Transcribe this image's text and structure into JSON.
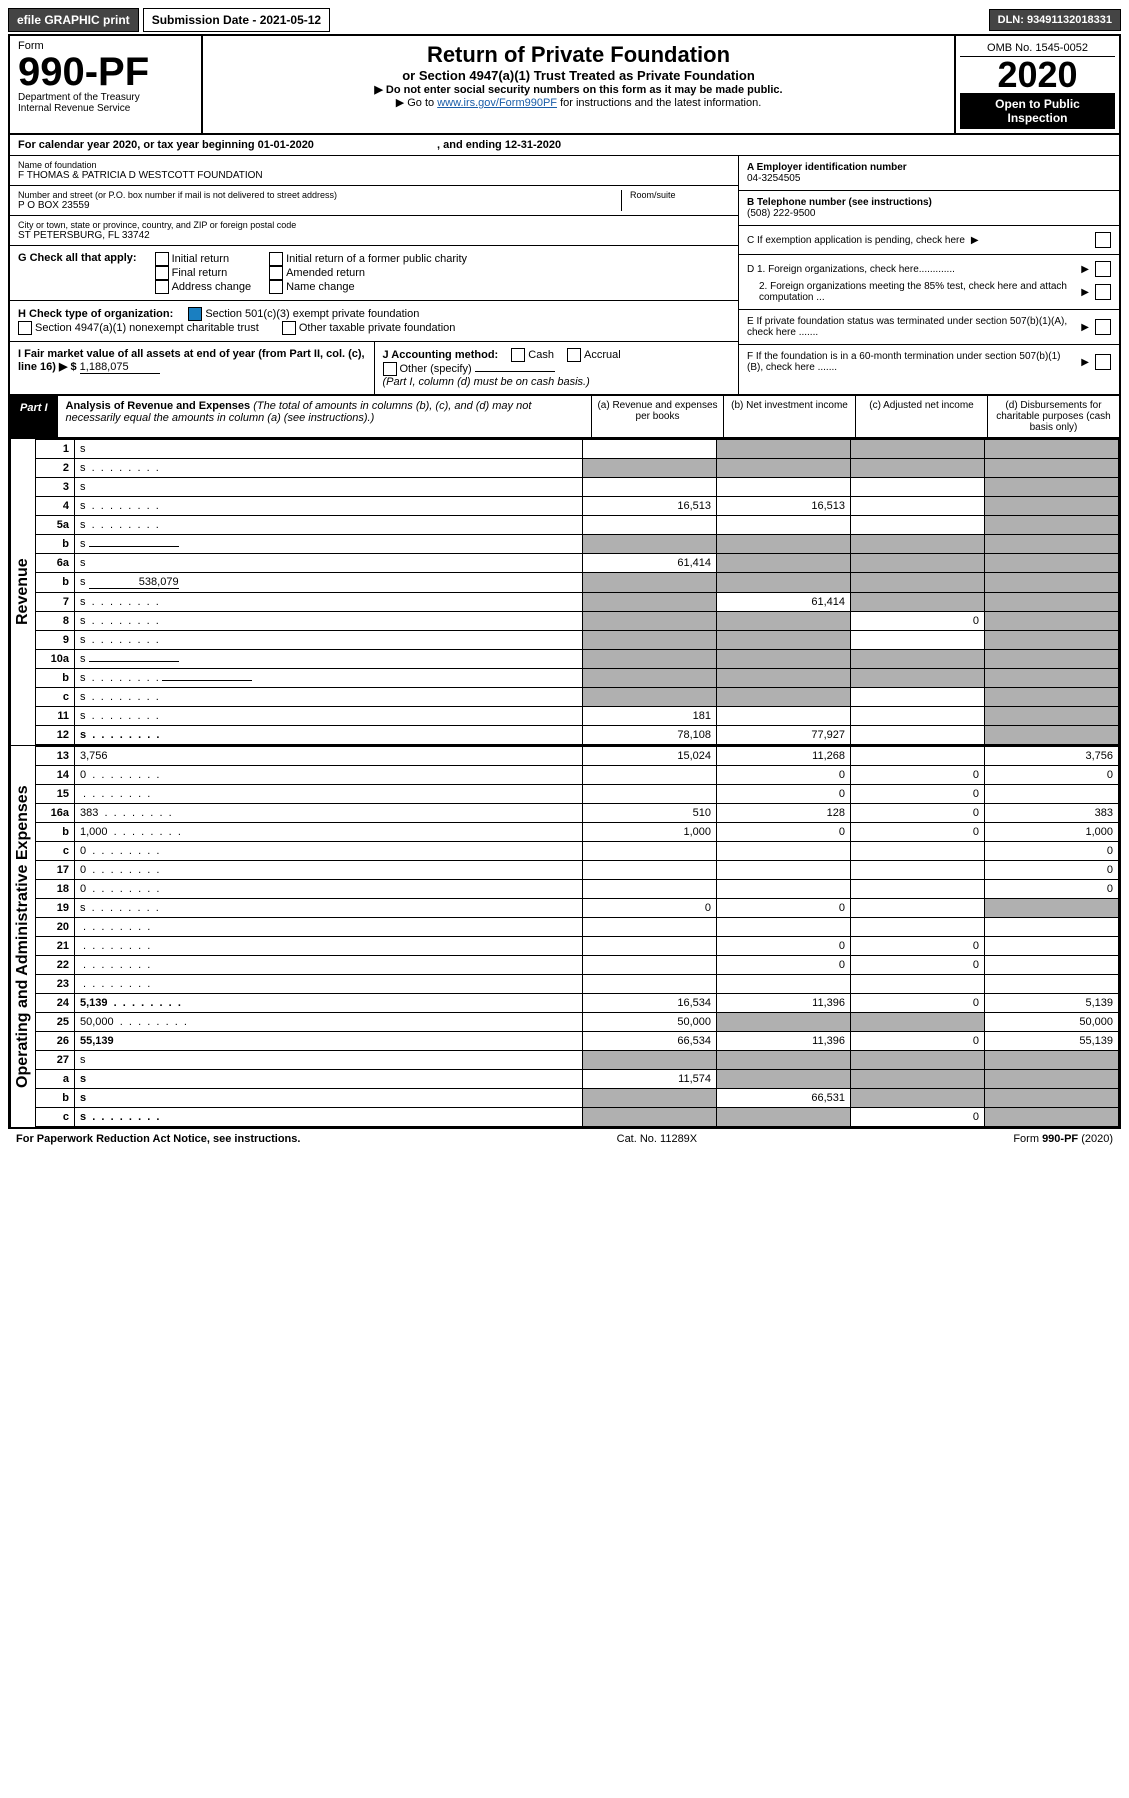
{
  "topbar": {
    "efile": "efile GRAPHIC print",
    "submission_label": "Submission Date - 2021-05-12",
    "dln": "DLN: 93491132018331"
  },
  "header": {
    "form_label": "Form",
    "form_number": "990-PF",
    "dept": "Department of the Treasury\nInternal Revenue Service",
    "title": "Return of Private Foundation",
    "subtitle": "or Section 4947(a)(1) Trust Treated as Private Foundation",
    "note1": "▶ Do not enter social security numbers on this form as it may be made public.",
    "note2_pre": "▶ Go to ",
    "note2_link": "www.irs.gov/Form990PF",
    "note2_post": " for instructions and the latest information.",
    "omb": "OMB No. 1545-0052",
    "year": "2020",
    "open": "Open to Public Inspection"
  },
  "calendar": {
    "text_pre": "For calendar year 2020, or tax year beginning ",
    "begin": "01-01-2020",
    "mid": ", and ending ",
    "end": "12-31-2020"
  },
  "entity": {
    "name_label": "Name of foundation",
    "name": "F THOMAS & PATRICIA D WESTCOTT FOUNDATION",
    "addr_label": "Number and street (or P.O. box number if mail is not delivered to street address)",
    "addr": "P O BOX 23559",
    "room_label": "Room/suite",
    "city_label": "City or town, state or province, country, and ZIP or foreign postal code",
    "city": "ST PETERSBURG, FL  33742",
    "a_label": "A Employer identification number",
    "a_val": "04-3254505",
    "b_label": "B Telephone number (see instructions)",
    "b_val": "(508) 222-9500",
    "c_label": "C If exemption application is pending, check here",
    "d1": "D 1. Foreign organizations, check here.............",
    "d2": "2. Foreign organizations meeting the 85% test, check here and attach computation ...",
    "e": "E If private foundation status was terminated under section 507(b)(1)(A), check here .......",
    "f": "F If the foundation is in a 60-month termination under section 507(b)(1)(B), check here ......."
  },
  "g": {
    "label": "G Check all that apply:",
    "opts": [
      "Initial return",
      "Final return",
      "Address change",
      "Initial return of a former public charity",
      "Amended return",
      "Name change"
    ]
  },
  "h": {
    "label": "H Check type of organization:",
    "opt1": "Section 501(c)(3) exempt private foundation",
    "opt2": "Section 4947(a)(1) nonexempt charitable trust",
    "opt3": "Other taxable private foundation"
  },
  "i": {
    "label": "I Fair market value of all assets at end of year (from Part II, col. (c), line 16) ▶ $",
    "value": "1,188,075"
  },
  "j": {
    "label": "J Accounting method:",
    "cash": "Cash",
    "accrual": "Accrual",
    "other": "Other (specify)",
    "note": "(Part I, column (d) must be on cash basis.)"
  },
  "part1": {
    "label": "Part I",
    "title": "Analysis of Revenue and Expenses",
    "title_note": " (The total of amounts in columns (b), (c), and (d) may not necessarily equal the amounts in column (a) (see instructions).)",
    "cols": {
      "a": "(a) Revenue and expenses per books",
      "b": "(b) Net investment income",
      "c": "(c) Adjusted net income",
      "d": "(d) Disbursements for charitable purposes (cash basis only)"
    }
  },
  "revenue_label": "Revenue",
  "expense_label": "Operating and Administrative Expenses",
  "rows": [
    {
      "n": "1",
      "d": "s",
      "a": "",
      "b": "s",
      "c": "s"
    },
    {
      "n": "2",
      "d": "s",
      "dots": true,
      "a": "s",
      "b": "s",
      "c": "s"
    },
    {
      "n": "3",
      "d": "s",
      "a": "",
      "b": "",
      "c": ""
    },
    {
      "n": "4",
      "d": "s",
      "dots": true,
      "a": "16,513",
      "b": "16,513",
      "c": ""
    },
    {
      "n": "5a",
      "d": "s",
      "dots": true,
      "a": "",
      "b": "",
      "c": ""
    },
    {
      "n": "b",
      "d": "s",
      "inline": true,
      "a": "s",
      "b": "s",
      "c": "s"
    },
    {
      "n": "6a",
      "d": "s",
      "a": "61,414",
      "b": "s",
      "c": "s"
    },
    {
      "n": "b",
      "d": "s",
      "inline": true,
      "inlineval": "538,079",
      "a": "s",
      "b": "s",
      "c": "s"
    },
    {
      "n": "7",
      "d": "s",
      "dots": true,
      "a": "s",
      "b": "61,414",
      "c": "s"
    },
    {
      "n": "8",
      "d": "s",
      "dots": true,
      "a": "s",
      "b": "s",
      "c": "0"
    },
    {
      "n": "9",
      "d": "s",
      "dots": true,
      "a": "s",
      "b": "s",
      "c": ""
    },
    {
      "n": "10a",
      "d": "s",
      "inline": true,
      "a": "s",
      "b": "s",
      "c": "s"
    },
    {
      "n": "b",
      "d": "s",
      "dots": true,
      "inline": true,
      "a": "s",
      "b": "s",
      "c": "s"
    },
    {
      "n": "c",
      "d": "s",
      "dots": true,
      "a": "s",
      "b": "s",
      "c": ""
    },
    {
      "n": "11",
      "d": "s",
      "dots": true,
      "a": "181",
      "b": "",
      "c": ""
    },
    {
      "n": "12",
      "d": "s",
      "bold": true,
      "dots": true,
      "a": "78,108",
      "b": "77,927",
      "c": ""
    }
  ],
  "exp_rows": [
    {
      "n": "13",
      "d": "3,756",
      "a": "15,024",
      "b": "11,268",
      "c": ""
    },
    {
      "n": "14",
      "d": "0",
      "dots": true,
      "a": "",
      "b": "0",
      "c": "0"
    },
    {
      "n": "15",
      "d": "",
      "dots": true,
      "a": "",
      "b": "0",
      "c": "0"
    },
    {
      "n": "16a",
      "d": "383",
      "dots": true,
      "a": "510",
      "b": "128",
      "c": "0"
    },
    {
      "n": "b",
      "d": "1,000",
      "dots": true,
      "a": "1,000",
      "b": "0",
      "c": "0"
    },
    {
      "n": "c",
      "d": "0",
      "dots": true,
      "a": "",
      "b": "",
      "c": ""
    },
    {
      "n": "17",
      "d": "0",
      "dots": true,
      "a": "",
      "b": "",
      "c": ""
    },
    {
      "n": "18",
      "d": "0",
      "dots": true,
      "a": "",
      "b": "",
      "c": ""
    },
    {
      "n": "19",
      "d": "s",
      "dots": true,
      "a": "0",
      "b": "0",
      "c": ""
    },
    {
      "n": "20",
      "d": "",
      "dots": true,
      "a": "",
      "b": "",
      "c": ""
    },
    {
      "n": "21",
      "d": "",
      "dots": true,
      "a": "",
      "b": "0",
      "c": "0"
    },
    {
      "n": "22",
      "d": "",
      "dots": true,
      "a": "",
      "b": "0",
      "c": "0"
    },
    {
      "n": "23",
      "d": "",
      "dots": true,
      "a": "",
      "b": "",
      "c": ""
    },
    {
      "n": "24",
      "d": "5,139",
      "bold": true,
      "dots": true,
      "a": "16,534",
      "b": "11,396",
      "c": "0"
    },
    {
      "n": "25",
      "d": "50,000",
      "dots": true,
      "a": "50,000",
      "b": "s",
      "c": "s"
    },
    {
      "n": "26",
      "d": "55,139",
      "bold": true,
      "a": "66,534",
      "b": "11,396",
      "c": "0"
    },
    {
      "n": "27",
      "d": "s",
      "a": "s",
      "b": "s",
      "c": "s"
    },
    {
      "n": "a",
      "d": "s",
      "bold": true,
      "a": "11,574",
      "b": "s",
      "c": "s"
    },
    {
      "n": "b",
      "d": "s",
      "bold": true,
      "a": "s",
      "b": "66,531",
      "c": "s"
    },
    {
      "n": "c",
      "d": "s",
      "bold": true,
      "dots": true,
      "a": "s",
      "b": "s",
      "c": "0"
    }
  ],
  "footer": {
    "left": "For Paperwork Reduction Act Notice, see instructions.",
    "mid": "Cat. No. 11289X",
    "right": "Form 990-PF (2020)"
  },
  "colors": {
    "shade": "#b0b0b0",
    "link": "#1a5da8",
    "checked": "#1a7fc1"
  }
}
